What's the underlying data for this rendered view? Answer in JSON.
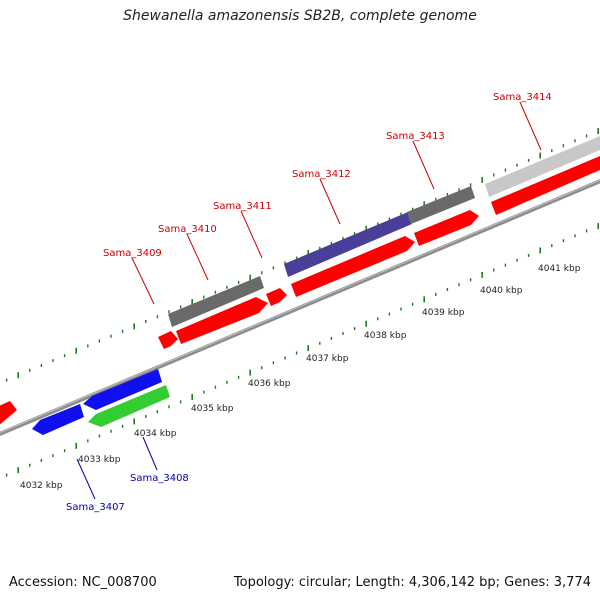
{
  "title": "Shewanella amazonensis SB2B, complete genome",
  "footer": {
    "accession": "Accession: NC_008700",
    "summary": "Topology: circular; Length: 4,306,142 bp; Genes: 3,774"
  },
  "colors": {
    "backbone": "#8c8c8c",
    "tick": "#1f7a1f",
    "red": "#ff0000",
    "blue": "#1010ee",
    "green": "#33cc33",
    "darkgray": "#6a6a6a",
    "purple": "#4a3f98",
    "lightgray": "#c8c8c8",
    "label_red": "#cc0000",
    "label_blue": "#0000aa"
  },
  "ticks": [
    "4032 kbp",
    "4033 kbp",
    "4034 kbp",
    "4035 kbp",
    "4036 kbp",
    "4037 kbp",
    "4038 kbp",
    "4039 kbp",
    "4040 kbp",
    "4041 kbp"
  ],
  "genes": [
    {
      "name": "Sama_3407",
      "labelled": true,
      "color": "blue",
      "strand": "reverse"
    },
    {
      "name": "Sama_3408",
      "labelled": true,
      "color": "blue",
      "strand": "reverse"
    },
    {
      "name": "",
      "labelled": false,
      "color": "green",
      "strand": "reverse"
    },
    {
      "name": "Sama_3409",
      "labelled": true,
      "color": "red",
      "strand": "forward"
    },
    {
      "name": "Sama_3410",
      "labelled": true,
      "color": "red",
      "strand": "forward"
    },
    {
      "name": "Sama_3411",
      "labelled": true,
      "color": "red",
      "strand": "forward"
    },
    {
      "name": "Sama_3412",
      "labelled": true,
      "color": "red",
      "strand": "forward"
    },
    {
      "name": "Sama_3413",
      "labelled": true,
      "color": "red",
      "strand": "forward"
    },
    {
      "name": "Sama_3414",
      "labelled": true,
      "color": "red",
      "strand": "forward"
    }
  ]
}
